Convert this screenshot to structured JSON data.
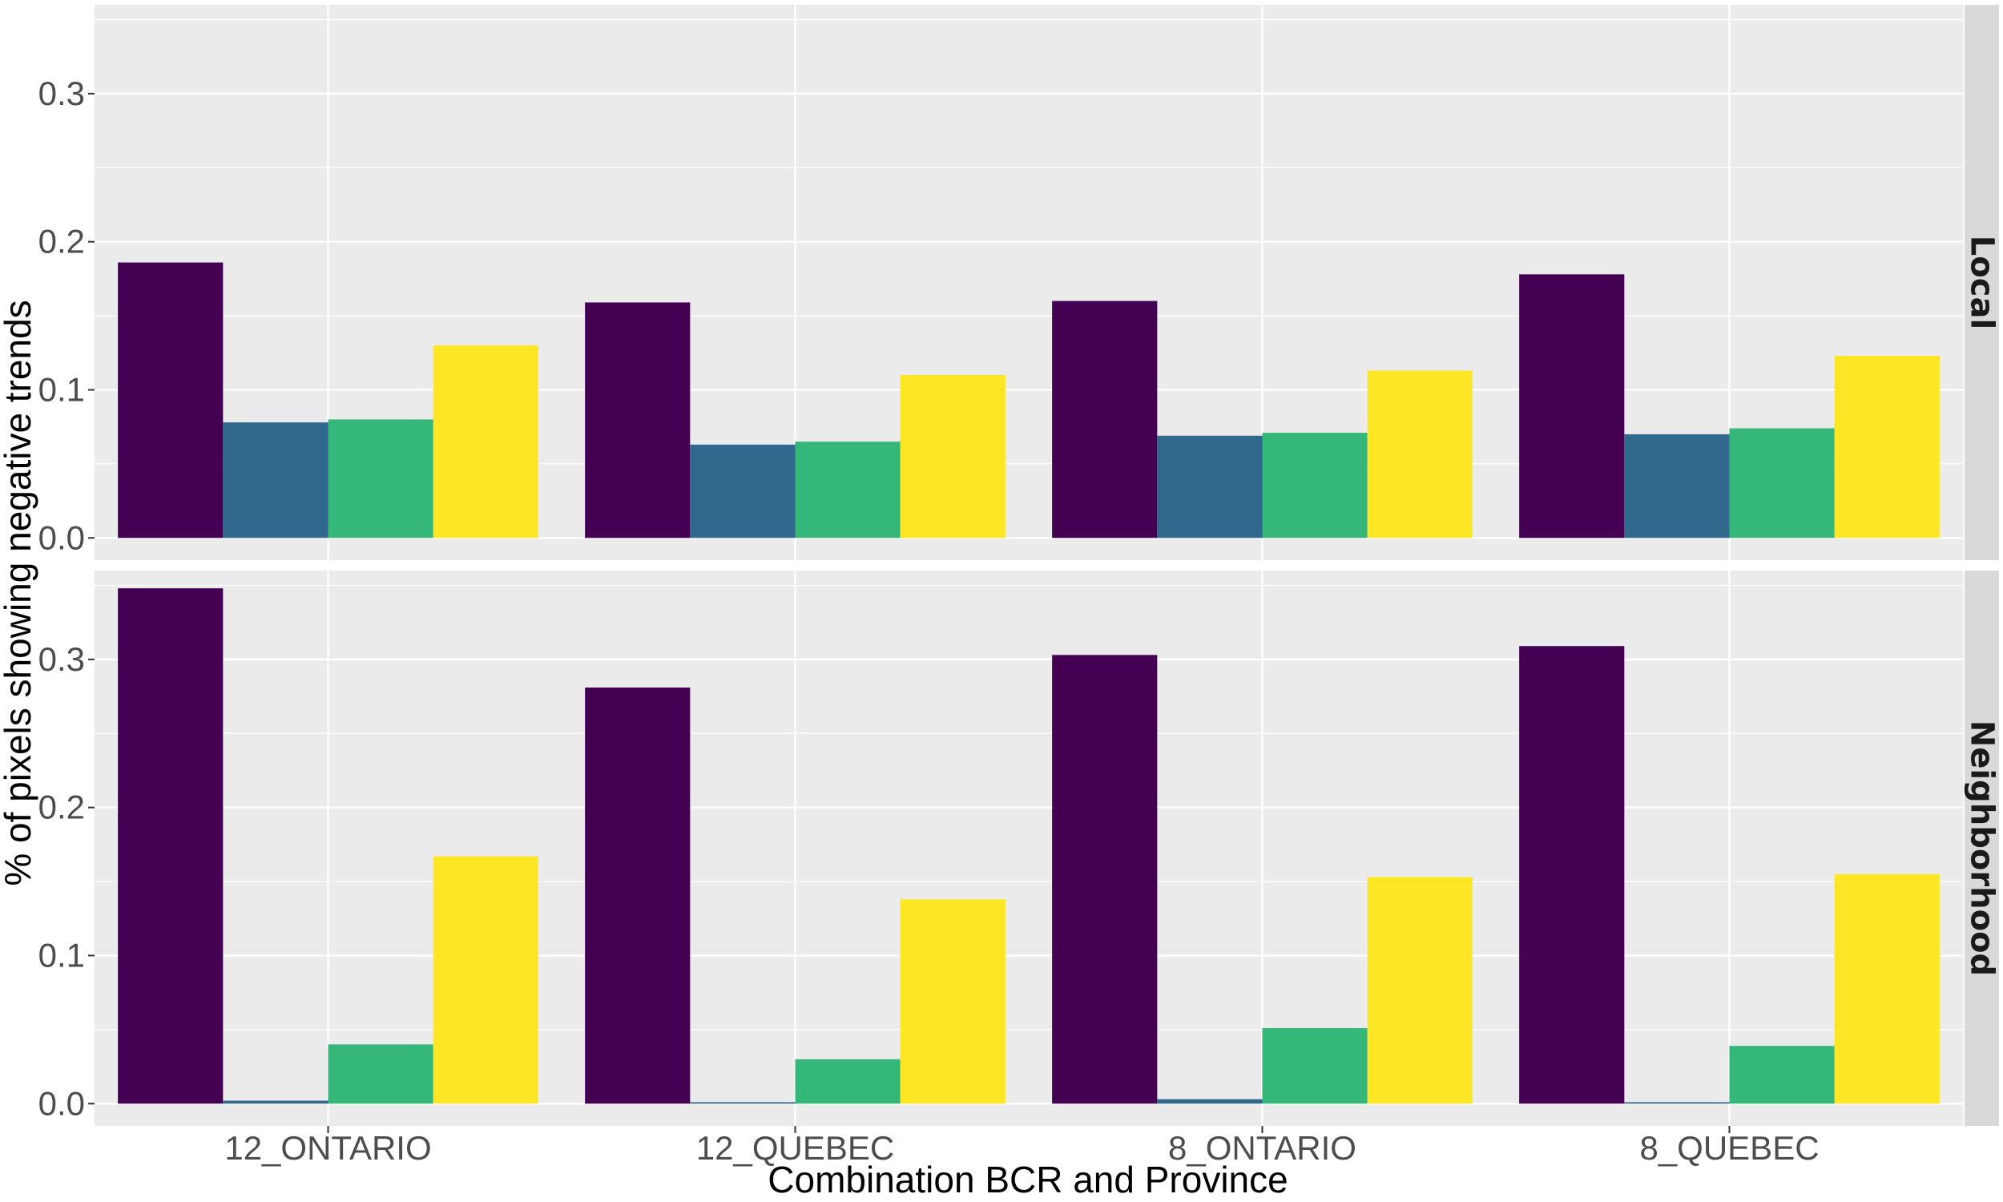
{
  "chart_data": {
    "type": "bar",
    "xlabel": "Combination BCR and Province",
    "ylabel": "% of pixels showing negative trends",
    "categories": [
      "12_ONTARIO",
      "12_QUEBEC",
      "8_ONTARIO",
      "8_QUEBEC"
    ],
    "ylim": [
      -0.015,
      0.36
    ],
    "yticks": [
      "0.0",
      "0.1",
      "0.2",
      "0.3"
    ],
    "series_colors": [
      "#440154",
      "#31688e",
      "#35b779",
      "#fde725"
    ],
    "grid": true,
    "legend": "none",
    "facets": [
      {
        "label": "Local",
        "values": [
          [
            0.186,
            0.078,
            0.08,
            0.13
          ],
          [
            0.159,
            0.063,
            0.065,
            0.11
          ],
          [
            0.16,
            0.069,
            0.071,
            0.113
          ],
          [
            0.178,
            0.07,
            0.074,
            0.123
          ]
        ]
      },
      {
        "label": "Neighborhood",
        "values": [
          [
            0.348,
            0.002,
            0.04,
            0.167
          ],
          [
            0.281,
            0.001,
            0.03,
            0.138
          ],
          [
            0.303,
            0.003,
            0.051,
            0.153
          ],
          [
            0.309,
            0.001,
            0.039,
            0.155
          ]
        ]
      }
    ]
  }
}
